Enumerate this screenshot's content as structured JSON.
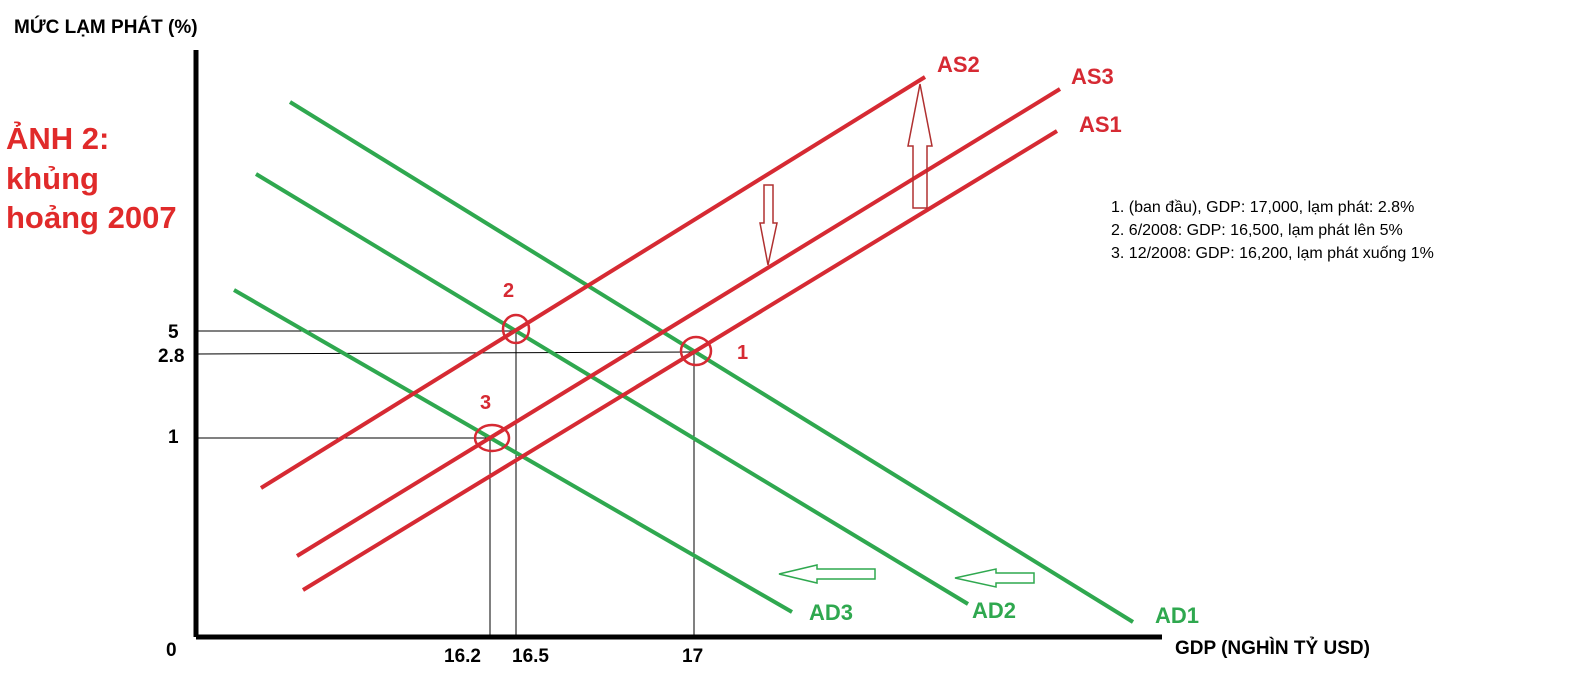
{
  "title_lines": [
    "ẢNH 2:",
    "khủng",
    "hoảng 2007"
  ],
  "y_axis_label": "MỨC LẠM PHÁT (%)",
  "x_axis_label": "GDP (NGHÌN TỶ USD)",
  "origin_label": "0",
  "y_ticks": [
    "5",
    "2.8",
    "1"
  ],
  "x_ticks": [
    "16.2",
    "16.5",
    "17"
  ],
  "curves": {
    "as1": "AS1",
    "as2": "AS2",
    "as3": "AS3",
    "ad1": "AD1",
    "ad2": "AD2",
    "ad3": "AD3"
  },
  "points": [
    "1",
    "2",
    "3"
  ],
  "notes": [
    "1. (ban đầu), GDP: 17,000, lạm phát: 2.8%",
    "2. 6/2008: GDP: 16,500, lạm phát lên 5%",
    "3. 12/2008: GDP: 16,200, lạm phát xuống 1%"
  ],
  "colors": {
    "supply": "#d62a33",
    "demand": "#2fa84f",
    "axis": "#000000",
    "title": "#e02a2a"
  }
}
